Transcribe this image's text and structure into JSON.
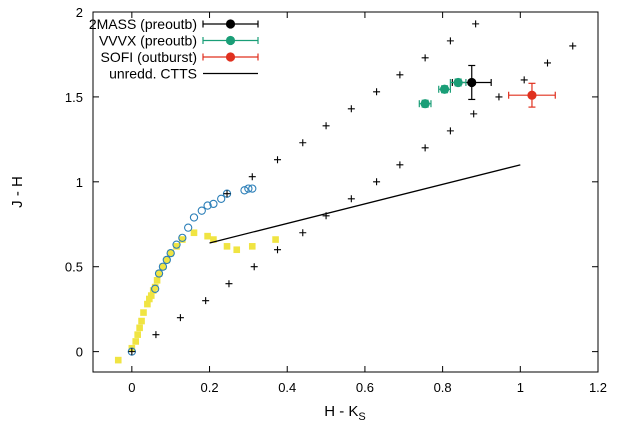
{
  "chart_data": {
    "type": "scatter",
    "xlabel_main": "H - K",
    "xlabel_sub": "S",
    "ylabel": "J - H",
    "xlim": [
      -0.1,
      1.2
    ],
    "ylim": [
      -0.12,
      2.0
    ],
    "xticks": [
      0,
      0.2,
      0.4,
      0.6,
      0.8,
      1,
      1.2
    ],
    "xtick_labels": [
      "0",
      "0.2",
      "0.4",
      "0.6",
      "0.8",
      "1",
      "1.2"
    ],
    "yticks": [
      0,
      0.5,
      1,
      1.5,
      2
    ],
    "ytick_labels": [
      "0",
      "0.5",
      "1",
      "1.5",
      "2"
    ],
    "grid": false,
    "legend_position": "top-left",
    "legend": [
      {
        "label": "2MASS (preoutb)",
        "color": "#000000",
        "kind": "errpoint"
      },
      {
        "label": "VVVX (preoutb)",
        "color": "#1a9e77",
        "kind": "errpoint"
      },
      {
        "label": "SOFI (outburst)",
        "color": "#e0301e",
        "kind": "errpoint"
      },
      {
        "label": "unredd. CTTS",
        "color": "#000000",
        "kind": "line"
      }
    ],
    "series": [
      {
        "name": "2MASS (preoutb)",
        "marker": "circle",
        "color": "#000000",
        "points": [
          {
            "x": 0.875,
            "y": 1.585,
            "xerr": 0.05,
            "yerr": 0.1
          }
        ]
      },
      {
        "name": "VVVX (preoutb)",
        "marker": "circle",
        "color": "#1a9e77",
        "points": [
          {
            "x": 0.755,
            "y": 1.46,
            "xerr": 0.015,
            "yerr": 0.02
          },
          {
            "x": 0.805,
            "y": 1.545,
            "xerr": 0.015,
            "yerr": 0.02
          },
          {
            "x": 0.84,
            "y": 1.585,
            "xerr": 0.02,
            "yerr": 0.02
          }
        ]
      },
      {
        "name": "SOFI (outburst)",
        "marker": "circle",
        "color": "#e0301e",
        "points": [
          {
            "x": 1.03,
            "y": 1.51,
            "xerr": 0.06,
            "yerr": 0.07
          }
        ]
      },
      {
        "name": "unredd. CTTS",
        "marker": "line",
        "color": "#000000",
        "points": [
          {
            "x": 0.2,
            "y": 0.64
          },
          {
            "x": 1.0,
            "y": 1.1
          }
        ]
      },
      {
        "marker": "plus",
        "color": "#000000",
        "points": [
          {
            "x": 0.0,
            "y": 0.0
          },
          {
            "x": 0.062,
            "y": 0.1
          },
          {
            "x": 0.125,
            "y": 0.2
          },
          {
            "x": 0.19,
            "y": 0.3
          },
          {
            "x": 0.25,
            "y": 0.4
          },
          {
            "x": 0.315,
            "y": 0.5
          },
          {
            "x": 0.375,
            "y": 0.6
          },
          {
            "x": 0.44,
            "y": 0.7
          },
          {
            "x": 0.5,
            "y": 0.8
          },
          {
            "x": 0.565,
            "y": 0.9
          },
          {
            "x": 0.63,
            "y": 1.0
          },
          {
            "x": 0.69,
            "y": 1.1
          },
          {
            "x": 0.755,
            "y": 1.2
          },
          {
            "x": 0.82,
            "y": 1.3
          },
          {
            "x": 0.88,
            "y": 1.4
          },
          {
            "x": 0.945,
            "y": 1.5
          },
          {
            "x": 1.01,
            "y": 1.6
          },
          {
            "x": 1.07,
            "y": 1.7
          },
          {
            "x": 1.135,
            "y": 1.8
          },
          {
            "x": 0.245,
            "y": 0.93
          },
          {
            "x": 0.31,
            "y": 1.03
          },
          {
            "x": 0.375,
            "y": 1.13
          },
          {
            "x": 0.44,
            "y": 1.23
          },
          {
            "x": 0.5,
            "y": 1.33
          },
          {
            "x": 0.565,
            "y": 1.43
          },
          {
            "x": 0.63,
            "y": 1.53
          },
          {
            "x": 0.69,
            "y": 1.63
          },
          {
            "x": 0.755,
            "y": 1.73
          },
          {
            "x": 0.82,
            "y": 1.83
          },
          {
            "x": 0.885,
            "y": 1.93
          }
        ]
      },
      {
        "marker": "open-circle",
        "color": "#2c7fb8",
        "points": [
          {
            "x": 0.0,
            "y": 0.0
          },
          {
            "x": 0.06,
            "y": 0.37
          },
          {
            "x": 0.07,
            "y": 0.46
          },
          {
            "x": 0.08,
            "y": 0.5
          },
          {
            "x": 0.09,
            "y": 0.54
          },
          {
            "x": 0.1,
            "y": 0.58
          },
          {
            "x": 0.115,
            "y": 0.63
          },
          {
            "x": 0.13,
            "y": 0.67
          },
          {
            "x": 0.145,
            "y": 0.73
          },
          {
            "x": 0.16,
            "y": 0.79
          },
          {
            "x": 0.18,
            "y": 0.83
          },
          {
            "x": 0.195,
            "y": 0.86
          },
          {
            "x": 0.21,
            "y": 0.87
          },
          {
            "x": 0.23,
            "y": 0.9
          },
          {
            "x": 0.245,
            "y": 0.93
          },
          {
            "x": 0.29,
            "y": 0.95
          },
          {
            "x": 0.3,
            "y": 0.96
          },
          {
            "x": 0.31,
            "y": 0.96
          }
        ]
      },
      {
        "marker": "square",
        "color": "#f0e442",
        "points": [
          {
            "x": -0.035,
            "y": -0.05
          },
          {
            "x": 0.0,
            "y": 0.02
          },
          {
            "x": 0.01,
            "y": 0.06
          },
          {
            "x": 0.015,
            "y": 0.1
          },
          {
            "x": 0.02,
            "y": 0.14
          },
          {
            "x": 0.025,
            "y": 0.18
          },
          {
            "x": 0.03,
            "y": 0.23
          },
          {
            "x": 0.04,
            "y": 0.28
          },
          {
            "x": 0.045,
            "y": 0.31
          },
          {
            "x": 0.05,
            "y": 0.33
          },
          {
            "x": 0.055,
            "y": 0.36
          },
          {
            "x": 0.06,
            "y": 0.38
          },
          {
            "x": 0.065,
            "y": 0.42
          },
          {
            "x": 0.07,
            "y": 0.46
          },
          {
            "x": 0.08,
            "y": 0.5
          },
          {
            "x": 0.09,
            "y": 0.54
          },
          {
            "x": 0.1,
            "y": 0.58
          },
          {
            "x": 0.115,
            "y": 0.62
          },
          {
            "x": 0.13,
            "y": 0.66
          },
          {
            "x": 0.16,
            "y": 0.7
          },
          {
            "x": 0.195,
            "y": 0.68
          },
          {
            "x": 0.21,
            "y": 0.66
          },
          {
            "x": 0.245,
            "y": 0.62
          },
          {
            "x": 0.27,
            "y": 0.6
          },
          {
            "x": 0.31,
            "y": 0.62
          },
          {
            "x": 0.37,
            "y": 0.66
          }
        ]
      }
    ]
  }
}
